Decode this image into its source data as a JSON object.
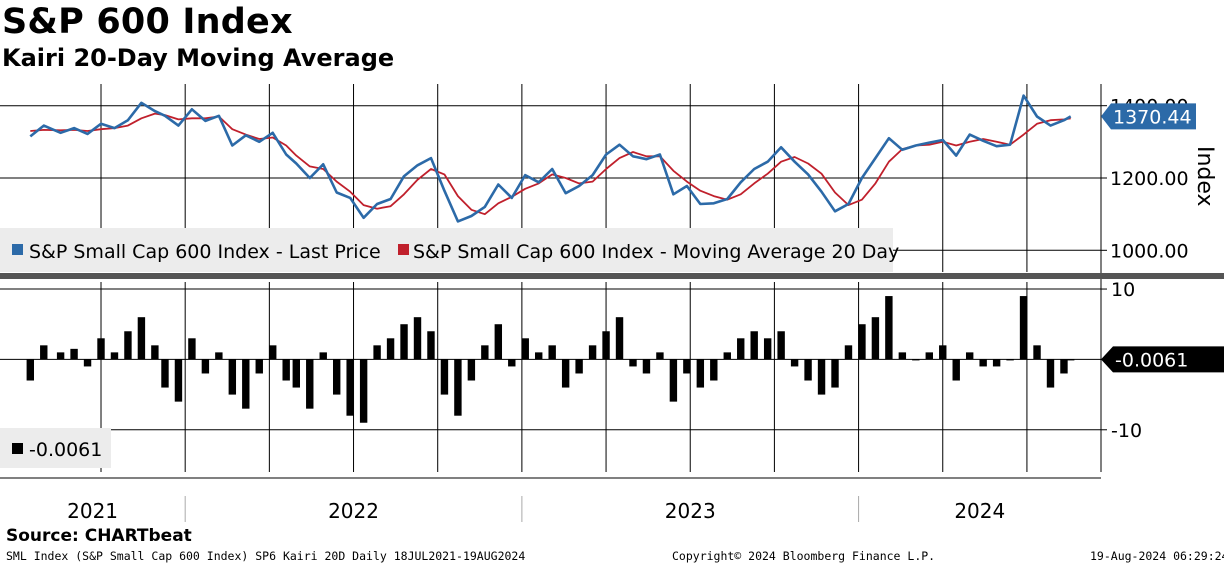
{
  "header": {
    "title": "S&P 600 Index",
    "subtitle": "Kairi 20-Day Moving Average"
  },
  "chart_data": [
    {
      "type": "line",
      "title": "S&P 600 Index",
      "ylabel": "Index",
      "ylim": [
        940,
        1460
      ],
      "yticks": [
        "1400.00",
        "1200.00",
        "1000.00"
      ],
      "ytick_values": [
        1400,
        1200,
        1000
      ],
      "x_axis_start": "18JUL2021",
      "x_axis_end": "19AUG2024",
      "x_labels": [
        "2021",
        "2022",
        "2023",
        "2024"
      ],
      "legend": [
        {
          "name": "S&P Small Cap 600 Index - Last Price",
          "color": "#2c6aa8"
        },
        {
          "name": "S&P Small Cap 600 Index - Moving Average 20 Day",
          "color": "#c0202c"
        }
      ],
      "last_value_label": "1370.44",
      "series": [
        {
          "name": "S&P Small Cap 600 Index - Last Price",
          "x": [
            2021.54,
            2021.58,
            2021.63,
            2021.67,
            2021.71,
            2021.75,
            2021.79,
            2021.83,
            2021.87,
            2021.91,
            2021.94,
            2021.98,
            2022.02,
            2022.06,
            2022.1,
            2022.14,
            2022.18,
            2022.22,
            2022.26,
            2022.3,
            2022.33,
            2022.37,
            2022.41,
            2022.45,
            2022.49,
            2022.53,
            2022.57,
            2022.61,
            2022.65,
            2022.69,
            2022.73,
            2022.77,
            2022.81,
            2022.85,
            2022.89,
            2022.93,
            2022.97,
            2023.01,
            2023.05,
            2023.09,
            2023.13,
            2023.17,
            2023.21,
            2023.25,
            2023.29,
            2023.33,
            2023.37,
            2023.41,
            2023.45,
            2023.49,
            2023.53,
            2023.57,
            2023.61,
            2023.65,
            2023.69,
            2023.73,
            2023.77,
            2023.81,
            2023.85,
            2023.89,
            2023.93,
            2023.97,
            2024.01,
            2024.05,
            2024.09,
            2024.13,
            2024.17,
            2024.21,
            2024.25,
            2024.29,
            2024.33,
            2024.37,
            2024.41,
            2024.45,
            2024.49,
            2024.53,
            2024.57,
            2024.61,
            2024.63
          ],
          "values": [
            1315,
            1345,
            1325,
            1338,
            1322,
            1350,
            1338,
            1360,
            1408,
            1385,
            1372,
            1345,
            1390,
            1358,
            1372,
            1290,
            1318,
            1300,
            1325,
            1265,
            1240,
            1200,
            1238,
            1160,
            1145,
            1090,
            1128,
            1142,
            1205,
            1235,
            1255,
            1165,
            1080,
            1095,
            1120,
            1182,
            1145,
            1208,
            1188,
            1225,
            1158,
            1178,
            1208,
            1265,
            1292,
            1260,
            1252,
            1265,
            1155,
            1178,
            1128,
            1130,
            1142,
            1188,
            1225,
            1245,
            1285,
            1245,
            1210,
            1162,
            1108,
            1128,
            1200,
            1255,
            1310,
            1278,
            1290,
            1298,
            1305,
            1262,
            1320,
            1303,
            1288,
            1292,
            1428,
            1370,
            1345,
            1360,
            1370.44
          ]
        },
        {
          "name": "S&P Small Cap 600 Index - Moving Average 20 Day",
          "x": [
            2021.54,
            2021.58,
            2021.63,
            2021.67,
            2021.71,
            2021.75,
            2021.79,
            2021.83,
            2021.87,
            2021.91,
            2021.94,
            2021.98,
            2022.02,
            2022.06,
            2022.1,
            2022.14,
            2022.18,
            2022.22,
            2022.26,
            2022.3,
            2022.33,
            2022.37,
            2022.41,
            2022.45,
            2022.49,
            2022.53,
            2022.57,
            2022.61,
            2022.65,
            2022.69,
            2022.73,
            2022.77,
            2022.81,
            2022.85,
            2022.89,
            2022.93,
            2022.97,
            2023.01,
            2023.05,
            2023.09,
            2023.13,
            2023.17,
            2023.21,
            2023.25,
            2023.29,
            2023.33,
            2023.37,
            2023.41,
            2023.45,
            2023.49,
            2023.53,
            2023.57,
            2023.61,
            2023.65,
            2023.69,
            2023.73,
            2023.77,
            2023.81,
            2023.85,
            2023.89,
            2023.93,
            2023.97,
            2024.01,
            2024.05,
            2024.09,
            2024.13,
            2024.17,
            2024.21,
            2024.25,
            2024.29,
            2024.33,
            2024.37,
            2024.41,
            2024.45,
            2024.49,
            2024.53,
            2024.57,
            2024.61,
            2024.63
          ],
          "values": [
            1330,
            1333,
            1332,
            1333,
            1330,
            1335,
            1338,
            1345,
            1365,
            1378,
            1374,
            1362,
            1365,
            1365,
            1370,
            1335,
            1320,
            1308,
            1312,
            1290,
            1262,
            1232,
            1225,
            1190,
            1162,
            1125,
            1115,
            1122,
            1155,
            1195,
            1225,
            1210,
            1150,
            1112,
            1100,
            1130,
            1148,
            1170,
            1185,
            1210,
            1200,
            1185,
            1190,
            1225,
            1255,
            1272,
            1260,
            1260,
            1220,
            1190,
            1165,
            1150,
            1140,
            1155,
            1185,
            1212,
            1245,
            1258,
            1240,
            1212,
            1160,
            1125,
            1140,
            1185,
            1245,
            1280,
            1290,
            1292,
            1300,
            1290,
            1300,
            1308,
            1300,
            1292,
            1320,
            1350,
            1360,
            1362,
            1365
          ]
        }
      ]
    },
    {
      "type": "bar",
      "title": "Kairi 20-Day Moving Average",
      "ylim": [
        -16,
        11
      ],
      "yticks": [
        "10",
        "-10"
      ],
      "ytick_values": [
        10,
        -10
      ],
      "legend": [
        {
          "name": "-0.0061",
          "color": "#000000"
        }
      ],
      "last_value_label": "-0.0061",
      "x": [
        2021.54,
        2021.58,
        2021.63,
        2021.67,
        2021.71,
        2021.75,
        2021.79,
        2021.83,
        2021.87,
        2021.91,
        2021.94,
        2021.98,
        2022.02,
        2022.06,
        2022.1,
        2022.14,
        2022.18,
        2022.22,
        2022.26,
        2022.3,
        2022.33,
        2022.37,
        2022.41,
        2022.45,
        2022.49,
        2022.53,
        2022.57,
        2022.61,
        2022.65,
        2022.69,
        2022.73,
        2022.77,
        2022.81,
        2022.85,
        2022.89,
        2022.93,
        2022.97,
        2023.01,
        2023.05,
        2023.09,
        2023.13,
        2023.17,
        2023.21,
        2023.25,
        2023.29,
        2023.33,
        2023.37,
        2023.41,
        2023.45,
        2023.49,
        2023.53,
        2023.57,
        2023.61,
        2023.65,
        2023.69,
        2023.73,
        2023.77,
        2023.81,
        2023.85,
        2023.89,
        2023.93,
        2023.97,
        2024.01,
        2024.05,
        2024.09,
        2024.13,
        2024.17,
        2024.21,
        2024.25,
        2024.29,
        2024.33,
        2024.37,
        2024.41,
        2024.45,
        2024.49,
        2024.53,
        2024.57,
        2024.61,
        2024.63
      ],
      "values": [
        -3,
        2,
        1,
        1.5,
        -1,
        3,
        1,
        4,
        6,
        2,
        -4,
        -6,
        3,
        -2,
        1,
        -5,
        -7,
        -2,
        2,
        -3,
        -4,
        -7,
        1,
        -5,
        -8,
        -9,
        2,
        3,
        5,
        6,
        4,
        -5,
        -8,
        -3,
        2,
        5,
        -1,
        3,
        1,
        2,
        -4,
        -2,
        2,
        4,
        6,
        -1,
        -2,
        1,
        -6,
        -2,
        -4,
        -3,
        1,
        3,
        4,
        3,
        4,
        -1,
        -3,
        -5,
        -4,
        2,
        5,
        6,
        9,
        1,
        0,
        1,
        2,
        -3,
        1,
        -1,
        -1,
        0,
        9,
        2,
        -4,
        -2,
        -0.0061
      ]
    }
  ],
  "source": "Source: CHARTbeat",
  "footer": {
    "left": "SML Index (S&P Small Cap 600 Index) SP6 Kairi 20D  Daily 18JUL2021-19AUG2024",
    "center": "Copyright© 2024 Bloomberg Finance L.P.",
    "right": "19-Aug-2024 06:29:24"
  },
  "colors": {
    "price": "#2c6aa8",
    "ma": "#c0202c",
    "bars": "#000000",
    "legend_bg": "#ececec",
    "divider": "#555555"
  }
}
